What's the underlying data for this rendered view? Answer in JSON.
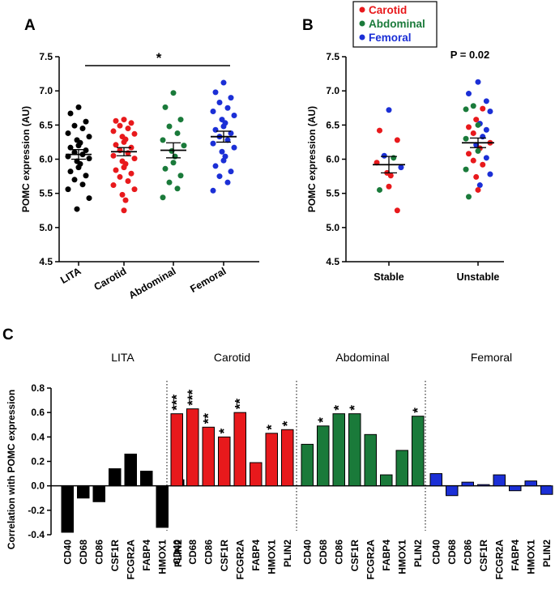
{
  "colors": {
    "LITA": "#000000",
    "Carotid": "#e8191c",
    "Abdominal": "#1a7a3a",
    "Femoral": "#1b2fd6"
  },
  "chart_data": [
    {
      "panel": "A",
      "type": "scatter",
      "ylabel": "POMC expression (AU)",
      "ylim": [
        4.5,
        7.5
      ],
      "yticks": [
        "4.5",
        "5.0",
        "5.5",
        "6.0",
        "6.5",
        "7.0",
        "7.5"
      ],
      "categories": [
        "LITA",
        "Carotid",
        "Abdominal",
        "Femoral"
      ],
      "significance": {
        "from": "LITA",
        "to": "Femoral",
        "label": "*"
      },
      "series": [
        {
          "name": "LITA",
          "mean": 6.07,
          "sem": 0.07,
          "values": [
            6.76,
            6.67,
            6.55,
            6.49,
            6.45,
            6.38,
            6.33,
            6.28,
            6.24,
            6.2,
            6.17,
            6.13,
            6.1,
            6.07,
            6.04,
            6.01,
            5.97,
            5.93,
            5.88,
            5.82,
            5.76,
            5.7,
            5.63,
            5.56,
            5.43,
            5.27
          ]
        },
        {
          "name": "Carotid",
          "mean": 6.11,
          "sem": 0.06,
          "values": [
            6.58,
            6.56,
            6.53,
            6.49,
            6.45,
            6.41,
            6.37,
            6.33,
            6.29,
            6.25,
            6.21,
            6.17,
            6.13,
            6.09,
            6.05,
            6.01,
            5.97,
            5.93,
            5.88,
            5.84,
            5.79,
            5.74,
            5.68,
            5.62,
            5.56,
            5.48,
            5.4,
            5.25
          ]
        },
        {
          "name": "Abdominal",
          "mean": 6.13,
          "sem": 0.11,
          "values": [
            6.97,
            6.76,
            6.58,
            6.48,
            6.38,
            6.28,
            6.2,
            6.12,
            6.04,
            5.95,
            5.86,
            5.76,
            5.66,
            5.57,
            5.44
          ]
        },
        {
          "name": "Femoral",
          "mean": 6.33,
          "sem": 0.08,
          "values": [
            7.12,
            6.98,
            6.9,
            6.83,
            6.75,
            6.7,
            6.64,
            6.58,
            6.53,
            6.48,
            6.43,
            6.38,
            6.33,
            6.28,
            6.23,
            6.17,
            6.11,
            6.04,
            5.98,
            5.9,
            5.82,
            5.75,
            5.66,
            5.54
          ]
        }
      ]
    },
    {
      "panel": "B",
      "type": "scatter",
      "ylabel": "POMC expression (AU)",
      "ylim": [
        4.5,
        7.5
      ],
      "yticks": [
        "4.5",
        "5.0",
        "5.5",
        "6.0",
        "6.5",
        "7.0",
        "7.5"
      ],
      "categories": [
        "Stable",
        "Unstable"
      ],
      "p_value": "P = 0.02",
      "legend": [
        "Carotid",
        "Abdominal",
        "Femoral"
      ],
      "series": [
        {
          "name": "Stable",
          "mean": 5.92,
          "sem": 0.12,
          "points": [
            {
              "value": 6.72,
              "group": "Femoral"
            },
            {
              "value": 6.42,
              "group": "Carotid"
            },
            {
              "value": 6.28,
              "group": "Carotid"
            },
            {
              "value": 6.05,
              "group": "Femoral"
            },
            {
              "value": 6.02,
              "group": "Abdominal"
            },
            {
              "value": 5.95,
              "group": "Carotid"
            },
            {
              "value": 5.88,
              "group": "Femoral"
            },
            {
              "value": 5.8,
              "group": "Carotid"
            },
            {
              "value": 5.76,
              "group": "Carotid"
            },
            {
              "value": 5.6,
              "group": "Carotid"
            },
            {
              "value": 5.55,
              "group": "Abdominal"
            },
            {
              "value": 5.25,
              "group": "Carotid"
            }
          ]
        },
        {
          "name": "Unstable",
          "mean": 6.24,
          "sem": 0.07,
          "points": [
            {
              "value": 7.13,
              "group": "Femoral"
            },
            {
              "value": 6.96,
              "group": "Femoral"
            },
            {
              "value": 6.85,
              "group": "Femoral"
            },
            {
              "value": 6.78,
              "group": "Abdominal"
            },
            {
              "value": 6.74,
              "group": "Carotid"
            },
            {
              "value": 6.73,
              "group": "Abdominal"
            },
            {
              "value": 6.7,
              "group": "Femoral"
            },
            {
              "value": 6.58,
              "group": "Carotid"
            },
            {
              "value": 6.52,
              "group": "Femoral"
            },
            {
              "value": 6.5,
              "group": "Abdominal"
            },
            {
              "value": 6.47,
              "group": "Carotid"
            },
            {
              "value": 6.43,
              "group": "Femoral"
            },
            {
              "value": 6.38,
              "group": "Carotid"
            },
            {
              "value": 6.33,
              "group": "Femoral"
            },
            {
              "value": 6.3,
              "group": "Abdominal"
            },
            {
              "value": 6.24,
              "group": "Carotid"
            },
            {
              "value": 6.21,
              "group": "Femoral"
            },
            {
              "value": 6.16,
              "group": "Carotid"
            },
            {
              "value": 6.12,
              "group": "Abdominal"
            },
            {
              "value": 6.08,
              "group": "Carotid"
            },
            {
              "value": 6.02,
              "group": "Femoral"
            },
            {
              "value": 5.98,
              "group": "Carotid"
            },
            {
              "value": 5.92,
              "group": "Carotid"
            },
            {
              "value": 5.85,
              "group": "Abdominal"
            },
            {
              "value": 5.78,
              "group": "Femoral"
            },
            {
              "value": 5.74,
              "group": "Carotid"
            },
            {
              "value": 5.62,
              "group": "Femoral"
            },
            {
              "value": 5.55,
              "group": "Carotid"
            },
            {
              "value": 5.45,
              "group": "Abdominal"
            }
          ]
        }
      ]
    },
    {
      "panel": "C",
      "type": "bar",
      "ylabel": "Correlation with POMC expression",
      "ylim": [
        -0.4,
        0.8
      ],
      "yticks": [
        "-0.4",
        "-0.2",
        "0.0",
        "0.2",
        "0.4",
        "0.6",
        "0.8"
      ],
      "categories": [
        "CD40",
        "CD68",
        "CD86",
        "CSF1R",
        "FCGR2A",
        "FABP4",
        "HMOX1",
        "PLIN2"
      ],
      "groups": [
        {
          "name": "LITA",
          "values": [
            -0.38,
            -0.1,
            -0.13,
            0.14,
            0.26,
            0.12,
            -0.34,
            0.05
          ],
          "stars": [
            "",
            "",
            "",
            "",
            "",
            "",
            "",
            ""
          ]
        },
        {
          "name": "Carotid",
          "values": [
            0.59,
            0.63,
            0.48,
            0.4,
            0.6,
            0.19,
            0.43,
            0.46
          ],
          "stars": [
            "***",
            "***",
            "**",
            "*",
            "**",
            "",
            "*",
            "*"
          ]
        },
        {
          "name": "Abdominal",
          "values": [
            0.34,
            0.49,
            0.59,
            0.59,
            0.42,
            0.09,
            0.29,
            0.57
          ],
          "stars": [
            "",
            "*",
            "*",
            "*",
            "",
            "",
            "",
            "*"
          ]
        },
        {
          "name": "Femoral",
          "values": [
            0.1,
            -0.08,
            0.03,
            0.01,
            0.09,
            -0.04,
            0.04,
            -0.07
          ],
          "stars": [
            "",
            "",
            "",
            "",
            "",
            "",
            "",
            ""
          ]
        }
      ]
    }
  ]
}
